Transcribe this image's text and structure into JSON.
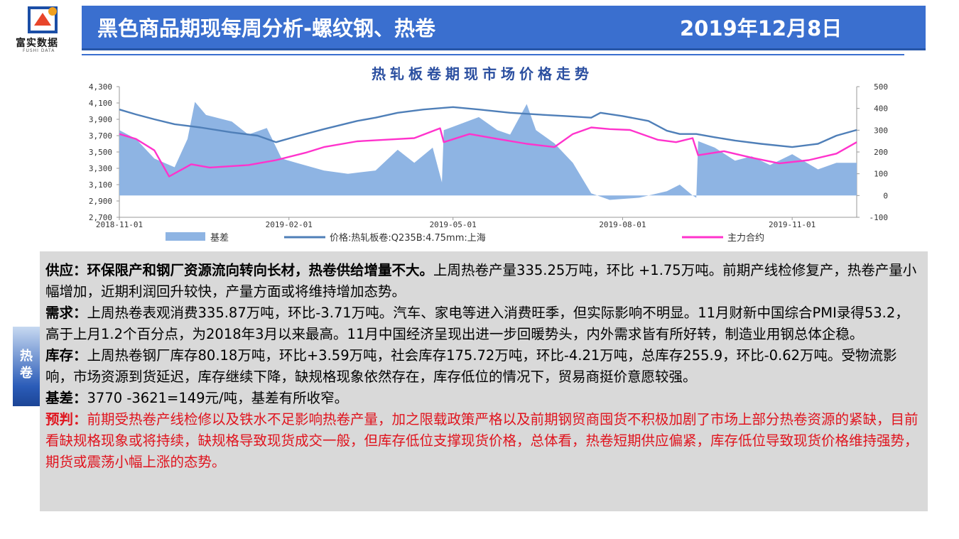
{
  "logo": {
    "name": "富实数据",
    "sub": "FUSHI DATA"
  },
  "header": {
    "title": "黑色商品期现每周分析-螺纹钢、热卷",
    "date": "2019年12月8日"
  },
  "side_tab": {
    "label": "热卷"
  },
  "chart_data": {
    "type": "line",
    "title": "热轧板卷期现市场价格走势",
    "x_ticks": [
      "2018-11-01",
      "2019-02-01",
      "2019-05-01",
      "2019-08-01",
      "2019-11-01"
    ],
    "y_left": {
      "ticks": [
        "4,300",
        "4,100",
        "3,900",
        "3,700",
        "3,500",
        "3,300",
        "3,100",
        "2,900",
        "2,700"
      ],
      "range": [
        2700,
        4300
      ]
    },
    "y_right": {
      "ticks": [
        "500",
        "400",
        "300",
        "200",
        "100",
        "0",
        "-100"
      ],
      "range": [
        -100,
        500
      ]
    },
    "grid": false,
    "legend_position": "bottom",
    "legend": [
      "基差",
      "价格:热轧板卷:Q235B:4.75mm:上海",
      "主力合约"
    ],
    "colors": {
      "basis": "#8eb4e3",
      "spot": "#4f7fb8",
      "futures": "#ff33cc"
    },
    "x_start": "2018-11-01",
    "x_end": "2019-12-06",
    "series": [
      {
        "name": "基差",
        "axis": "right",
        "type": "area",
        "points": [
          [
            "2018-11-01",
            300
          ],
          [
            "2018-11-10",
            260
          ],
          [
            "2018-11-20",
            170
          ],
          [
            "2018-12-01",
            130
          ],
          [
            "2018-12-08",
            260
          ],
          [
            "2018-12-12",
            430
          ],
          [
            "2018-12-18",
            370
          ],
          [
            "2019-01-01",
            340
          ],
          [
            "2019-01-10",
            280
          ],
          [
            "2019-01-20",
            310
          ],
          [
            "2019-01-28",
            170
          ],
          [
            "2019-02-05",
            150
          ],
          [
            "2019-02-20",
            115
          ],
          [
            "2019-03-05",
            100
          ],
          [
            "2019-03-20",
            115
          ],
          [
            "2019-04-01",
            210
          ],
          [
            "2019-04-10",
            150
          ],
          [
            "2019-04-20",
            220
          ],
          [
            "2019-04-25",
            60
          ],
          [
            "2019-04-26",
            300
          ],
          [
            "2019-05-15",
            360
          ],
          [
            "2019-05-25",
            300
          ],
          [
            "2019-06-01",
            280
          ],
          [
            "2019-06-10",
            420
          ],
          [
            "2019-06-15",
            300
          ],
          [
            "2019-06-25",
            240
          ],
          [
            "2019-07-05",
            150
          ],
          [
            "2019-07-15",
            10
          ],
          [
            "2019-07-25",
            -20
          ],
          [
            "2019-08-10",
            -10
          ],
          [
            "2019-08-25",
            20
          ],
          [
            "2019-09-01",
            50
          ],
          [
            "2019-09-08",
            0
          ],
          [
            "2019-09-10",
            -10
          ],
          [
            "2019-09-11",
            250
          ],
          [
            "2019-09-20",
            220
          ],
          [
            "2019-10-01",
            160
          ],
          [
            "2019-10-10",
            180
          ],
          [
            "2019-10-20",
            140
          ],
          [
            "2019-11-01",
            190
          ],
          [
            "2019-11-15",
            120
          ],
          [
            "2019-11-25",
            150
          ],
          [
            "2019-12-06",
            150
          ]
        ]
      },
      {
        "name": "价格:热轧板卷:Q235B:4.75mm:上海",
        "axis": "left",
        "type": "line",
        "points": [
          [
            "2018-11-01",
            4020
          ],
          [
            "2018-11-10",
            3960
          ],
          [
            "2018-11-20",
            3900
          ],
          [
            "2018-12-01",
            3840
          ],
          [
            "2018-12-15",
            3800
          ],
          [
            "2019-01-01",
            3740
          ],
          [
            "2019-01-15",
            3700
          ],
          [
            "2019-01-25",
            3620
          ],
          [
            "2019-02-05",
            3690
          ],
          [
            "2019-02-20",
            3780
          ],
          [
            "2019-03-10",
            3880
          ],
          [
            "2019-03-20",
            3920
          ],
          [
            "2019-04-01",
            3980
          ],
          [
            "2019-04-15",
            4020
          ],
          [
            "2019-05-01",
            4050
          ],
          [
            "2019-05-15",
            4020
          ],
          [
            "2019-06-01",
            3980
          ],
          [
            "2019-06-15",
            3960
          ],
          [
            "2019-07-01",
            3940
          ],
          [
            "2019-07-15",
            3920
          ],
          [
            "2019-07-20",
            3980
          ],
          [
            "2019-08-01",
            3940
          ],
          [
            "2019-08-15",
            3880
          ],
          [
            "2019-08-25",
            3760
          ],
          [
            "2019-09-01",
            3720
          ],
          [
            "2019-09-10",
            3720
          ],
          [
            "2019-09-20",
            3680
          ],
          [
            "2019-10-01",
            3640
          ],
          [
            "2019-10-15",
            3600
          ],
          [
            "2019-11-01",
            3560
          ],
          [
            "2019-11-15",
            3600
          ],
          [
            "2019-11-25",
            3700
          ],
          [
            "2019-12-06",
            3770
          ]
        ]
      },
      {
        "name": "主力合约",
        "axis": "left",
        "type": "line",
        "points": [
          [
            "2018-11-01",
            3720
          ],
          [
            "2018-11-10",
            3660
          ],
          [
            "2018-11-20",
            3520
          ],
          [
            "2018-11-28",
            3200
          ],
          [
            "2018-12-10",
            3350
          ],
          [
            "2018-12-20",
            3310
          ],
          [
            "2019-01-10",
            3340
          ],
          [
            "2019-01-25",
            3400
          ],
          [
            "2019-02-10",
            3490
          ],
          [
            "2019-02-20",
            3560
          ],
          [
            "2019-03-10",
            3630
          ],
          [
            "2019-03-25",
            3650
          ],
          [
            "2019-04-10",
            3670
          ],
          [
            "2019-04-24",
            3790
          ],
          [
            "2019-04-26",
            3620
          ],
          [
            "2019-05-10",
            3720
          ],
          [
            "2019-05-25",
            3660
          ],
          [
            "2019-06-10",
            3600
          ],
          [
            "2019-06-25",
            3560
          ],
          [
            "2019-07-05",
            3720
          ],
          [
            "2019-07-15",
            3800
          ],
          [
            "2019-07-25",
            3780
          ],
          [
            "2019-08-05",
            3770
          ],
          [
            "2019-08-20",
            3650
          ],
          [
            "2019-08-30",
            3620
          ],
          [
            "2019-09-08",
            3670
          ],
          [
            "2019-09-11",
            3460
          ],
          [
            "2019-09-25",
            3510
          ],
          [
            "2019-10-10",
            3430
          ],
          [
            "2019-10-25",
            3360
          ],
          [
            "2019-11-10",
            3400
          ],
          [
            "2019-11-25",
            3480
          ],
          [
            "2019-12-06",
            3620
          ]
        ]
      }
    ]
  },
  "commentary": {
    "supply_label": "供应：",
    "supply_bold": "环保限产和钢厂资源流向转向长材，热卷供给增量不大。",
    "supply_text": "上周热卷产量335.25万吨，环比 +1.75万吨。前期产线检修复产，热卷产量小幅增加，近期利润回升较快，产量方面或将维持增加态势。",
    "demand_label": "需求：",
    "demand_text": "上周热卷表观消费335.87万吨，环比-3.71万吨。汽车、家电等进入消费旺季，但实际影响不明显。11月财新中国综合PMI录得53.2，高于上月1.2个百分点，为2018年3月以来最高。11月中国经济呈现出进一步回暖势头，内外需求皆有所好转，制造业用钢总体企稳。",
    "inventory_label": "库存：",
    "inventory_text": "上周热卷钢厂库存80.18万吨，环比+3.59万吨，社会库存175.72万吨，环比-4.21万吨，总库存255.9，环比-0.62万吨。受物流影响，市场资源到货延迟，库存继续下降，缺规格现象依然存在，库存低位的情况下，贸易商挺价意愿较强。",
    "basis_label": "基差：",
    "basis_text": "3770 -3621=149元/吨，基差有所收窄。",
    "forecast_label": "预判：",
    "forecast_text": "前期受热卷产线检修以及铁水不足影响热卷产量，加之限载政策严格以及前期钢贸商囤货不积极加剧了市场上部分热卷资源的紧缺，目前看缺规格现象或将持续，缺规格导致现货成交一般，但库存低位支撑现货价格，总体看，热卷短期供应偏紧，库存低位导致现货价格维持强势，期货或震荡小幅上涨的态势。"
  }
}
